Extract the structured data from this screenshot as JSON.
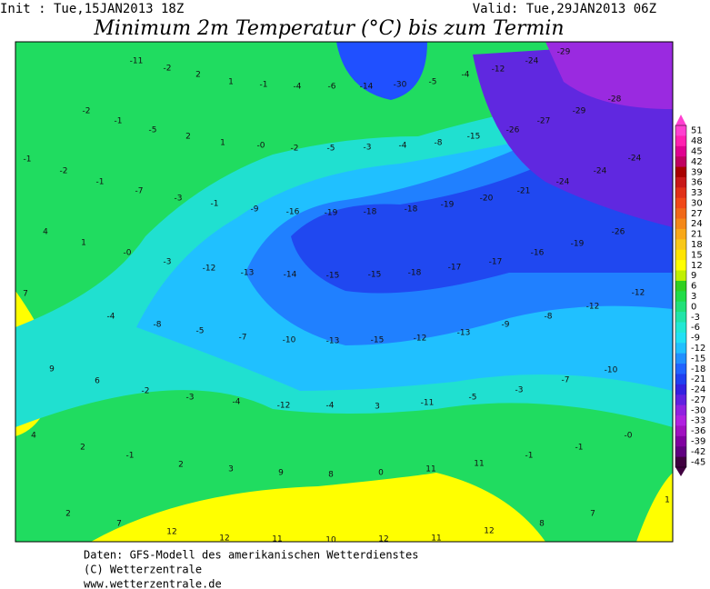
{
  "header": {
    "init": "Init : Tue,15JAN2013 18Z",
    "valid": "Valid: Tue,29JAN2013 06Z",
    "title": "Minimum 2m Temperatur (°C) bis zum Termin"
  },
  "map": {
    "labels": [
      "-11",
      "-2",
      "2",
      "1",
      "-1",
      "-4",
      "-6",
      "-14",
      "-30",
      "-5",
      "-4",
      "-12",
      "-24",
      "-29",
      "-2",
      "-1",
      "-5",
      "2",
      "1",
      "-0",
      "-2",
      "-5",
      "-3",
      "-4",
      "-8",
      "-15",
      "-26",
      "-27",
      "-29",
      "-28",
      "-1",
      "-2",
      "-1",
      "-7",
      "-3",
      "-1",
      "-9",
      "-16",
      "-19",
      "-18",
      "-18",
      "-19",
      "-20",
      "-21",
      "-24",
      "-24",
      "-24",
      "4",
      "1",
      "-0",
      "-3",
      "-12",
      "-13",
      "-14",
      "-15",
      "-15",
      "-18",
      "-17",
      "-17",
      "-16",
      "-19",
      "-26",
      "7",
      "-4",
      "-8",
      "-5",
      "-7",
      "-10",
      "-13",
      "-15",
      "-12",
      "-13",
      "-9",
      "-8",
      "-12",
      "-12",
      "9",
      "6",
      "-2",
      "-3",
      "-4",
      "-12",
      "-4",
      "3",
      "-11",
      "-5",
      "-3",
      "-7",
      "-10",
      "4",
      "2",
      "-1",
      "2",
      "3",
      "9",
      "8",
      "0",
      "11",
      "11",
      "-1",
      "-1",
      "-0",
      "2",
      "7",
      "12",
      "12",
      "11",
      "10",
      "12",
      "11",
      "12",
      "8",
      "7",
      "1"
    ]
  },
  "colorbar": {
    "labels": [
      "51",
      "48",
      "45",
      "42",
      "39",
      "36",
      "33",
      "30",
      "27",
      "24",
      "21",
      "18",
      "15",
      "12",
      "9",
      "6",
      "3",
      "0",
      "-3",
      "-6",
      "-9",
      "-12",
      "-15",
      "-18",
      "-21",
      "-24",
      "-27",
      "-30",
      "-33",
      "-36",
      "-39",
      "-42",
      "-45"
    ],
    "colors": [
      "#ff40d0",
      "#ff20b0",
      "#e00090",
      "#c00060",
      "#a80000",
      "#c81818",
      "#e03018",
      "#f04818",
      "#f06818",
      "#f48818",
      "#f8a818",
      "#f8c818",
      "#ffe400",
      "#ffff00",
      "#c0f000",
      "#30d020",
      "#20dc48",
      "#20e078",
      "#20e4a8",
      "#20e8d4",
      "#20e0f4",
      "#20c0ff",
      "#2090ff",
      "#2064ff",
      "#2040f0",
      "#3420e0",
      "#6020e0",
      "#9020e0",
      "#b020e0",
      "#a010c0",
      "#8000a0",
      "#600080",
      "#400040"
    ]
  },
  "footer": [
    "Daten: GFS-Modell des amerikanischen Wetterdienstes",
    "(C) Wetterzentrale",
    "www.wetterzentrale.de"
  ]
}
